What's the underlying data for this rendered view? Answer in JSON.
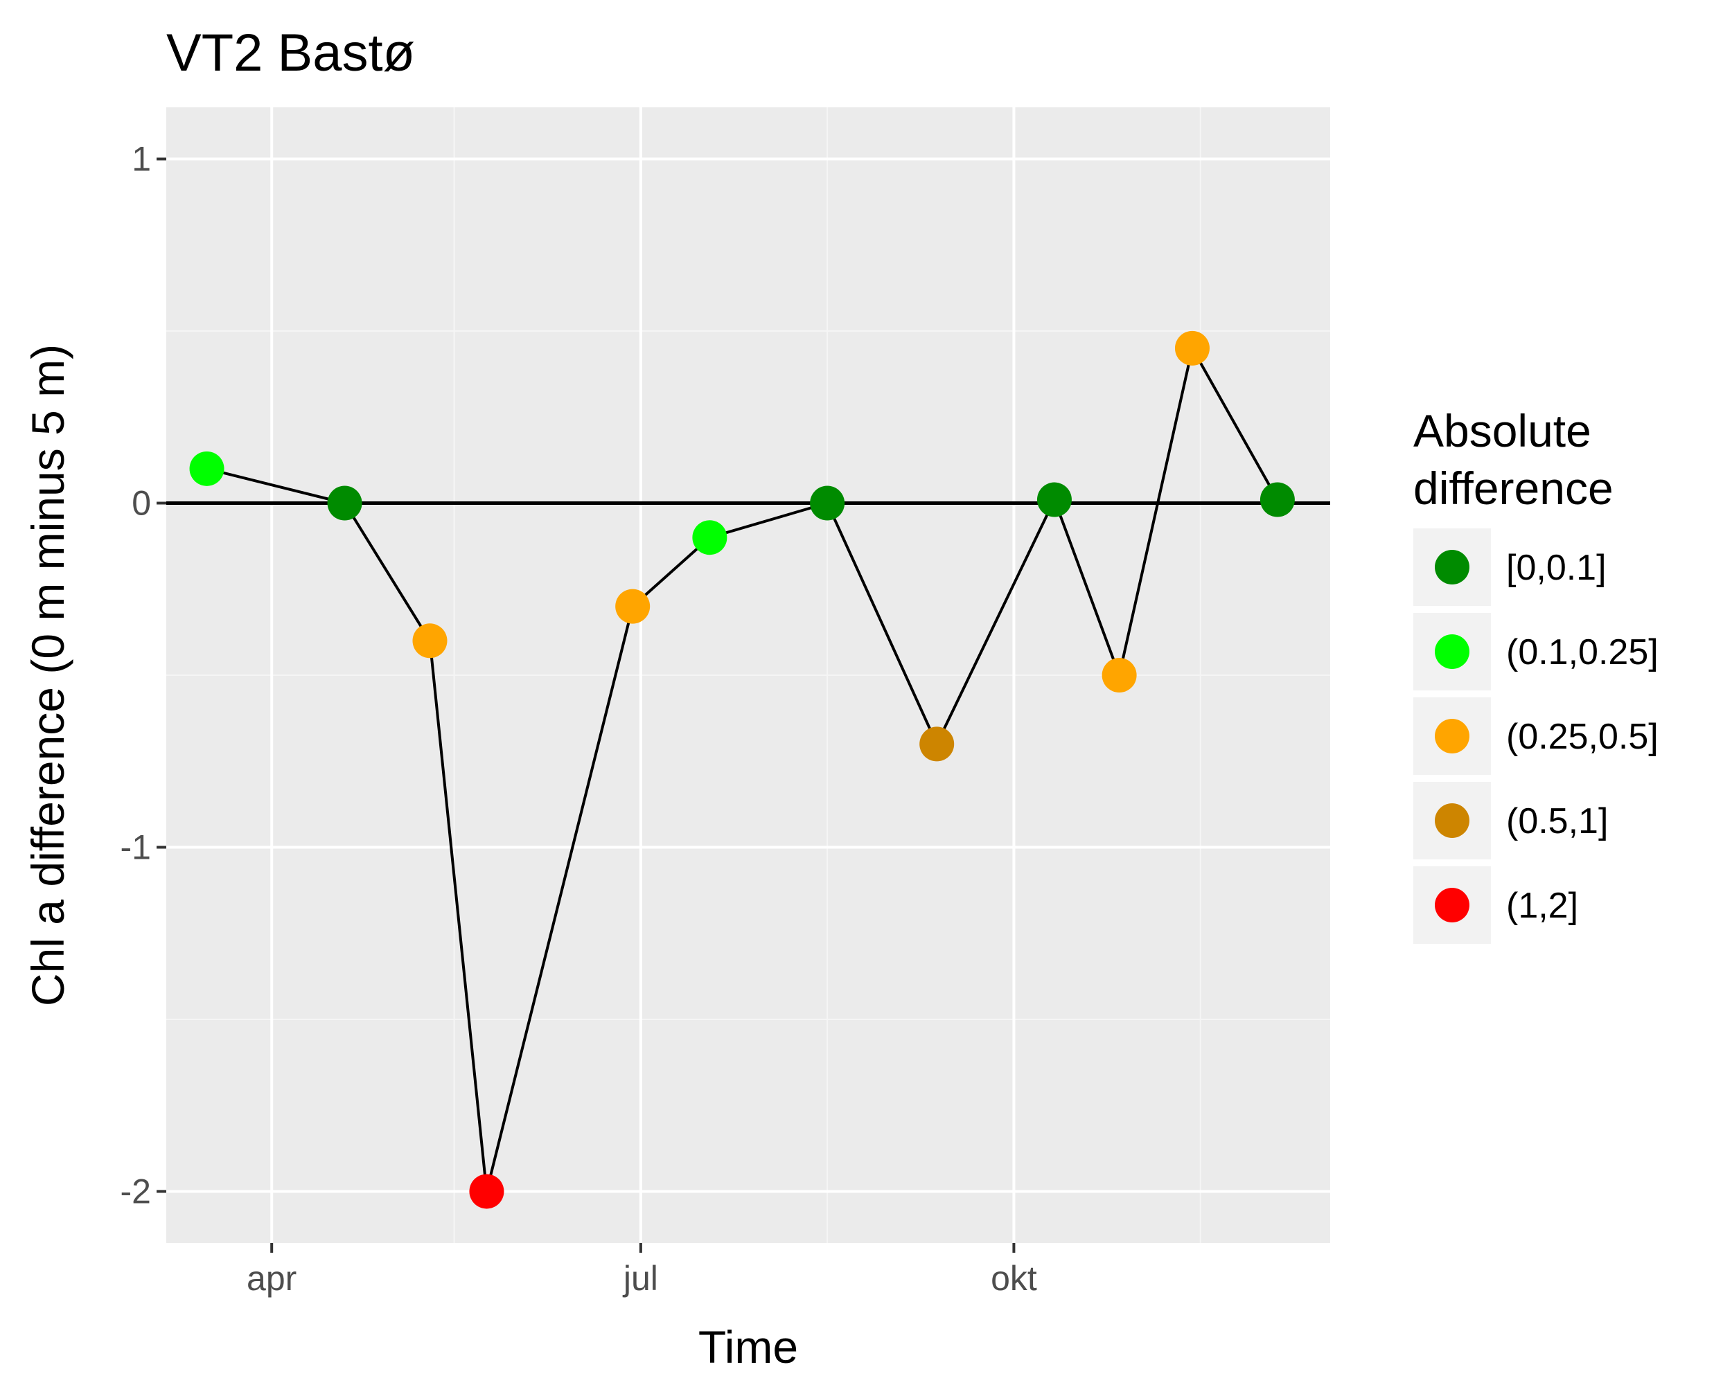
{
  "chart_data": {
    "type": "scatter",
    "title": "VT2 Bastø",
    "xlabel": "Time",
    "ylabel": "Chl a difference (0 m minus 5 m)",
    "x_axis_type": "date",
    "xlim": [
      "2017-03-06",
      "2017-12-18"
    ],
    "ylim": [
      -2.15,
      1.15
    ],
    "x_ticks": [
      {
        "date": "2017-04-01",
        "label": "apr"
      },
      {
        "date": "2017-07-01",
        "label": "jul"
      },
      {
        "date": "2017-10-01",
        "label": "okt"
      }
    ],
    "x_minor_ticks": [
      "2017-05-16",
      "2017-08-16",
      "2017-11-16"
    ],
    "y_ticks": [
      1,
      0,
      -1,
      -2
    ],
    "y_tick_labels": [
      "1",
      "0",
      "-1",
      "-2"
    ],
    "y_minor_ticks": [
      0.5,
      -0.5,
      -1.5
    ],
    "grid": true,
    "reference_line_y": 0,
    "points": [
      {
        "date": "2017-03-16",
        "value": 0.1,
        "category": "(0.1,0.25]"
      },
      {
        "date": "2017-04-19",
        "value": 0.0,
        "category": "[0,0.1]"
      },
      {
        "date": "2017-05-10",
        "value": -0.4,
        "category": "(0.25,0.5]"
      },
      {
        "date": "2017-05-24",
        "value": -2.0,
        "category": "(1,2]"
      },
      {
        "date": "2017-06-29",
        "value": -0.3,
        "category": "(0.25,0.5]"
      },
      {
        "date": "2017-07-18",
        "value": -0.1,
        "category": "(0.1,0.25]"
      },
      {
        "date": "2017-08-16",
        "value": 0.0,
        "category": "[0,0.1]"
      },
      {
        "date": "2017-09-12",
        "value": -0.7,
        "category": "(0.5,1]"
      },
      {
        "date": "2017-10-11",
        "value": 0.01,
        "category": "[0,0.1]"
      },
      {
        "date": "2017-10-27",
        "value": -0.5,
        "category": "(0.25,0.5]"
      },
      {
        "date": "2017-11-14",
        "value": 0.45,
        "category": "(0.25,0.5]"
      },
      {
        "date": "2017-12-05",
        "value": 0.01,
        "category": "[0,0.1]"
      }
    ],
    "legend": {
      "title_lines": [
        "Absolute",
        "difference"
      ],
      "placement": "right",
      "entries": [
        {
          "label": "[0,0.1]",
          "color": "#008b00"
        },
        {
          "label": "(0.1,0.25]",
          "color": "#00ff00"
        },
        {
          "label": "(0.25,0.5]",
          "color": "#ffa500"
        },
        {
          "label": "(0.5,1]",
          "color": "#cd8500"
        },
        {
          "label": "(1,2]",
          "color": "#ff0000"
        }
      ]
    },
    "colors": {
      "panel_background": "#ebebeb",
      "grid_major": "#ffffff",
      "grid_minor": "#f5f5f5",
      "line": "#000000",
      "legend_key_background": "#f2f2f2"
    }
  }
}
